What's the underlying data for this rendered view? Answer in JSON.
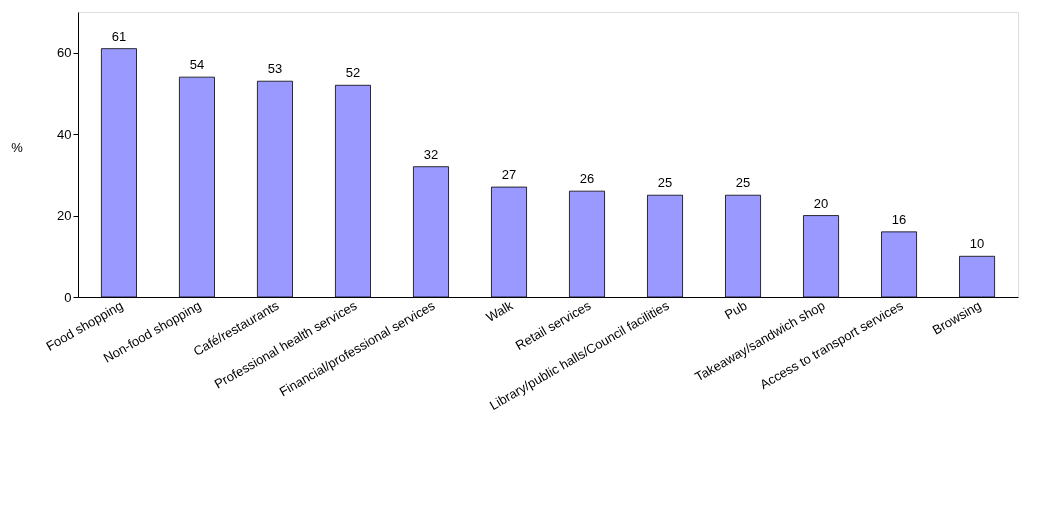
{
  "chart_data": {
    "type": "bar",
    "ylabel": "%",
    "categories": [
      "Food shopping",
      "Non-food shopping",
      "Café/restaurants",
      "Professional health services",
      "Financial/professional services",
      "Walk",
      "Retail services",
      "Library/public halls/Council facilities",
      "Pub",
      "Takeaway/sandwich shop",
      "Access to transport services",
      "Browsing"
    ],
    "values": [
      61,
      54,
      53,
      52,
      32,
      27,
      26,
      25,
      25,
      20,
      16,
      10
    ],
    "color": "#9999ff",
    "ylim": [
      0,
      70
    ],
    "yticks": [
      0,
      20,
      40,
      60
    ],
    "grid": false,
    "data_labels": true
  }
}
